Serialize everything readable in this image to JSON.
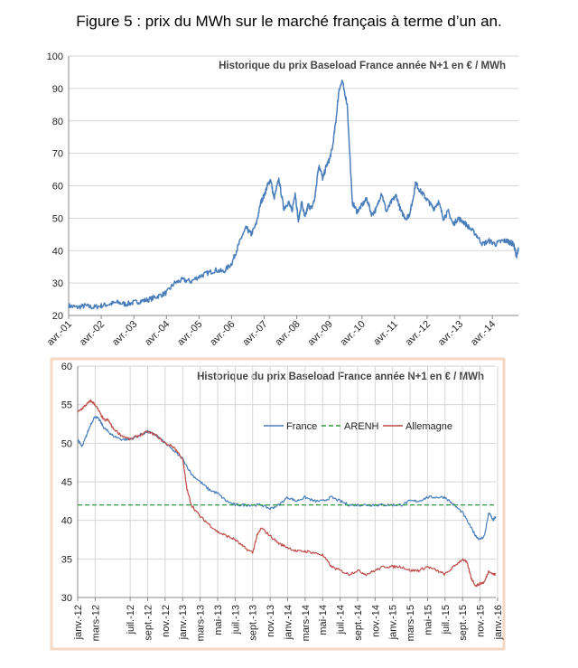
{
  "figure_title": "Figure 5 : prix du MWh sur le marché français à terme d’un an.",
  "colors": {
    "france": "#4a7ebb",
    "arenh": "#2e9a3e",
    "allemagne": "#be4b48",
    "frame": "#f5d7c2",
    "grid": "#d6d6d6"
  },
  "chart_data": [
    {
      "type": "line",
      "title": "Historique du prix Baseload France année N+1 en € / MWh",
      "xlabel": "",
      "ylabel": "",
      "ylim": [
        20,
        100
      ],
      "yticks": [
        20,
        30,
        40,
        50,
        60,
        70,
        80,
        90,
        100
      ],
      "categories": [
        "avr.-01",
        "avr.-02",
        "avr.-03",
        "avr.-04",
        "avr.-05",
        "avr.-06",
        "avr.-07",
        "avr.-08",
        "avr.-09",
        "avr.-10",
        "avr.-11",
        "avr.-12",
        "avr.-13",
        "avr.-14"
      ],
      "x_end": 13.8,
      "grid": true,
      "series": [
        {
          "name": "France",
          "x": [
            0,
            0.25,
            0.5,
            0.75,
            1,
            1.25,
            1.5,
            1.75,
            2,
            2.25,
            2.5,
            2.75,
            3,
            3.25,
            3.5,
            3.75,
            4,
            4.25,
            4.5,
            4.75,
            5,
            5.15,
            5.3,
            5.45,
            5.6,
            5.75,
            5.9,
            6,
            6.1,
            6.2,
            6.3,
            6.45,
            6.6,
            6.75,
            6.85,
            6.95,
            7.05,
            7.15,
            7.25,
            7.35,
            7.45,
            7.55,
            7.6,
            7.65,
            7.7,
            7.8,
            7.9,
            8.0,
            8.1,
            8.2,
            8.3,
            8.4,
            8.55,
            8.7,
            8.85,
            9.0,
            9.15,
            9.3,
            9.45,
            9.6,
            9.75,
            9.9,
            10.05,
            10.2,
            10.35,
            10.45,
            10.55,
            10.65,
            10.75,
            10.9,
            11.05,
            11.2,
            11.35,
            11.5,
            11.65,
            11.8,
            11.95,
            12.1,
            12.3,
            12.5,
            12.7,
            12.9,
            13.1,
            13.3,
            13.45,
            13.55,
            13.65,
            13.75,
            13.8
          ],
          "values": [
            23,
            22.5,
            23,
            22.5,
            23,
            23.5,
            24,
            23.5,
            24,
            24.5,
            25,
            26,
            27,
            30,
            31,
            30.5,
            32,
            33,
            34,
            33.5,
            36,
            40,
            44,
            47,
            45,
            48,
            55,
            57,
            60,
            62,
            56,
            62,
            53,
            55,
            52,
            58,
            49,
            55,
            50,
            54,
            53,
            56,
            60,
            65,
            66,
            62,
            66,
            68,
            72,
            80,
            90,
            92,
            85,
            55,
            52,
            54,
            56,
            51,
            53,
            58,
            52,
            55,
            57,
            52,
            50,
            51,
            55,
            61,
            59,
            57,
            55,
            53,
            55,
            50,
            52,
            48,
            50,
            49,
            47,
            45,
            42,
            43,
            42,
            43,
            43,
            42.5,
            42,
            38,
            41
          ]
        }
      ]
    },
    {
      "type": "line",
      "title": "Historique du prix Baseload France année N+1 en € / MWh",
      "xlabel": "",
      "ylabel": "",
      "ylim": [
        30,
        60
      ],
      "yticks": [
        30,
        35,
        40,
        45,
        50,
        55,
        60
      ],
      "categories": [
        "janv.-12",
        "mars-12",
        "juil.-12",
        "sept.-12",
        "nov.-12",
        "janv.-13",
        "mars-13",
        "mai-13",
        "juil.-13",
        "sept.-13",
        "nov.-13",
        "janv.-14",
        "mars-14",
        "mai-14",
        "juil.-14",
        "sept.-14",
        "nov.-14",
        "janv.-15",
        "mars-15",
        "mai-15",
        "juil.-15",
        "sept.-15",
        "nov.-15",
        "janv.-16"
      ],
      "x_start": 0,
      "x_end": 47.8,
      "tick_positions": [
        0,
        2,
        6,
        8,
        10,
        12,
        14,
        16,
        18,
        20,
        22,
        24,
        26,
        28,
        30,
        32,
        34,
        36,
        38,
        40,
        42,
        44,
        46,
        48
      ],
      "grid": true,
      "legend": "top-right",
      "series": [
        {
          "name": "France",
          "x": [
            0,
            0.5,
            1,
            1.5,
            2,
            2.5,
            3,
            3.5,
            4,
            5,
            6,
            7,
            8,
            9,
            10,
            11,
            12,
            13,
            14,
            15,
            16,
            17,
            18,
            19,
            20,
            21,
            22,
            23,
            24,
            25,
            26,
            27,
            28,
            29,
            30,
            31,
            32,
            33,
            34,
            35,
            36,
            37,
            38,
            39,
            40,
            41,
            42,
            43,
            44,
            45,
            45.5,
            46,
            46.5,
            47,
            47.5,
            47.8
          ],
          "values": [
            50.5,
            49.5,
            51,
            52.5,
            53.5,
            53,
            52,
            51.5,
            51,
            50.5,
            50.5,
            51,
            51.5,
            51,
            50,
            49,
            48,
            46,
            45,
            44,
            43.5,
            42.5,
            42,
            42,
            42,
            42,
            41.5,
            42,
            43,
            42.5,
            43,
            42.5,
            42.5,
            43,
            42.5,
            42,
            42,
            42,
            42,
            42,
            42,
            42,
            42.5,
            42.5,
            43,
            43,
            43,
            42,
            41,
            39,
            38,
            37.5,
            38,
            41,
            40,
            40.5
          ]
        },
        {
          "name": "ARENH",
          "x": [
            0,
            47.8
          ],
          "values": [
            42,
            42
          ]
        },
        {
          "name": "Allemagne",
          "x": [
            0,
            0.5,
            1,
            1.5,
            2,
            2.5,
            3,
            3.5,
            4,
            5,
            6,
            7,
            8,
            9,
            10,
            11,
            12,
            12.5,
            13,
            14,
            15,
            16,
            17,
            18,
            19,
            20,
            20.5,
            21,
            22,
            23,
            24,
            25,
            26,
            27,
            28,
            29,
            30,
            31,
            32,
            33,
            34,
            35,
            36,
            37,
            38,
            39,
            40,
            41,
            42,
            43,
            44,
            44.5,
            45,
            45.5,
            46,
            46.5,
            47,
            47.5,
            47.8
          ],
          "values": [
            54,
            54.5,
            55,
            55.5,
            55,
            54,
            53,
            53,
            52,
            51,
            50.5,
            51,
            51.5,
            51,
            50,
            49.5,
            48,
            44,
            42,
            40.5,
            39.5,
            38.5,
            38,
            37.5,
            36.5,
            35.8,
            38,
            39,
            38,
            37,
            36.5,
            36,
            36,
            35.8,
            35.5,
            34,
            33.5,
            33,
            33.5,
            33,
            33.5,
            34,
            34,
            34,
            33.5,
            33.5,
            34,
            33.5,
            33,
            34,
            35,
            34.5,
            32.5,
            31.5,
            31.8,
            32,
            33.5,
            33,
            33
          ]
        }
      ]
    }
  ]
}
